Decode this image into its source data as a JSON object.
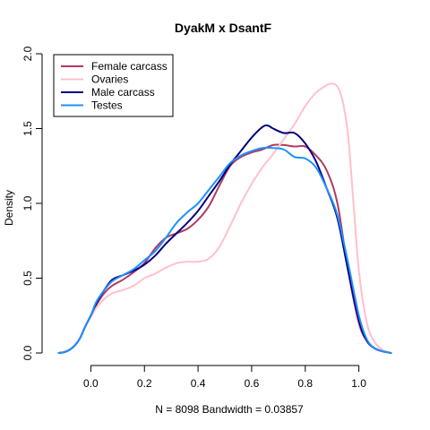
{
  "chart_data": {
    "type": "line",
    "title": "DyakM x DsantF",
    "xlabel": "N = 8098   Bandwidth = 0.03857",
    "ylabel": "Density",
    "xlim": [
      -0.135,
      1.135
    ],
    "ylim": [
      0.0,
      2.0
    ],
    "x_ticks": [
      "0.0",
      "0.2",
      "0.4",
      "0.6",
      "0.8",
      "1.0"
    ],
    "y_ticks": [
      "0.0",
      "0.5",
      "1.0",
      "1.5",
      "2.0"
    ],
    "legend_position": "top-left",
    "series": [
      {
        "name": "Female carcass",
        "color": "#B03A63",
        "x": [
          -0.12,
          -0.1,
          -0.08,
          -0.06,
          -0.04,
          -0.02,
          0.0,
          0.02,
          0.05,
          0.08,
          0.12,
          0.16,
          0.2,
          0.24,
          0.28,
          0.32,
          0.36,
          0.4,
          0.44,
          0.48,
          0.52,
          0.56,
          0.6,
          0.64,
          0.68,
          0.72,
          0.76,
          0.8,
          0.84,
          0.88,
          0.92,
          0.96,
          1.0,
          1.03,
          1.06,
          1.09,
          1.12
        ],
        "y": [
          0.0,
          0.005,
          0.02,
          0.05,
          0.1,
          0.18,
          0.25,
          0.32,
          0.4,
          0.45,
          0.49,
          0.54,
          0.6,
          0.7,
          0.77,
          0.8,
          0.83,
          0.89,
          0.98,
          1.12,
          1.25,
          1.31,
          1.34,
          1.36,
          1.39,
          1.39,
          1.38,
          1.38,
          1.32,
          1.22,
          1.0,
          0.55,
          0.2,
          0.08,
          0.03,
          0.01,
          0.0
        ]
      },
      {
        "name": "Ovaries",
        "color": "#FFC0CB",
        "x": [
          -0.12,
          -0.1,
          -0.08,
          -0.06,
          -0.04,
          -0.02,
          0.0,
          0.02,
          0.05,
          0.08,
          0.12,
          0.16,
          0.2,
          0.24,
          0.28,
          0.32,
          0.36,
          0.4,
          0.44,
          0.48,
          0.52,
          0.56,
          0.6,
          0.64,
          0.68,
          0.72,
          0.76,
          0.8,
          0.84,
          0.88,
          0.9,
          0.92,
          0.94,
          0.96,
          0.98,
          1.0,
          1.03,
          1.06,
          1.09,
          1.12
        ],
        "y": [
          0.0,
          0.005,
          0.02,
          0.05,
          0.1,
          0.18,
          0.24,
          0.3,
          0.36,
          0.4,
          0.42,
          0.45,
          0.5,
          0.53,
          0.57,
          0.6,
          0.61,
          0.61,
          0.63,
          0.71,
          0.85,
          1.0,
          1.13,
          1.24,
          1.33,
          1.43,
          1.53,
          1.65,
          1.74,
          1.79,
          1.8,
          1.78,
          1.68,
          1.45,
          1.0,
          0.55,
          0.2,
          0.07,
          0.02,
          0.0
        ]
      },
      {
        "name": "Male carcass",
        "color": "#000080",
        "x": [
          -0.12,
          -0.1,
          -0.08,
          -0.06,
          -0.04,
          -0.02,
          0.0,
          0.02,
          0.05,
          0.08,
          0.12,
          0.16,
          0.2,
          0.24,
          0.28,
          0.32,
          0.36,
          0.4,
          0.44,
          0.48,
          0.52,
          0.56,
          0.6,
          0.64,
          0.66,
          0.68,
          0.72,
          0.76,
          0.8,
          0.84,
          0.88,
          0.92,
          0.96,
          1.0,
          1.03,
          1.06,
          1.09,
          1.12
        ],
        "y": [
          0.0,
          0.005,
          0.02,
          0.05,
          0.1,
          0.18,
          0.25,
          0.33,
          0.42,
          0.49,
          0.52,
          0.55,
          0.59,
          0.65,
          0.73,
          0.8,
          0.87,
          0.95,
          1.05,
          1.15,
          1.26,
          1.35,
          1.44,
          1.51,
          1.52,
          1.5,
          1.47,
          1.47,
          1.4,
          1.28,
          1.1,
          0.9,
          0.55,
          0.22,
          0.08,
          0.03,
          0.01,
          0.0
        ]
      },
      {
        "name": "Testes",
        "color": "#1E90FF",
        "x": [
          -0.12,
          -0.1,
          -0.08,
          -0.06,
          -0.04,
          -0.02,
          0.0,
          0.02,
          0.05,
          0.08,
          0.12,
          0.16,
          0.2,
          0.24,
          0.28,
          0.32,
          0.36,
          0.4,
          0.44,
          0.48,
          0.52,
          0.56,
          0.6,
          0.64,
          0.68,
          0.72,
          0.76,
          0.8,
          0.84,
          0.88,
          0.92,
          0.96,
          1.0,
          1.03,
          1.06,
          1.09,
          1.12
        ],
        "y": [
          0.0,
          0.005,
          0.02,
          0.05,
          0.1,
          0.18,
          0.25,
          0.34,
          0.42,
          0.48,
          0.52,
          0.56,
          0.62,
          0.68,
          0.77,
          0.87,
          0.94,
          1.0,
          1.09,
          1.18,
          1.27,
          1.32,
          1.35,
          1.37,
          1.37,
          1.36,
          1.31,
          1.3,
          1.24,
          1.1,
          0.92,
          0.6,
          0.25,
          0.09,
          0.03,
          0.01,
          0.0
        ]
      }
    ]
  }
}
